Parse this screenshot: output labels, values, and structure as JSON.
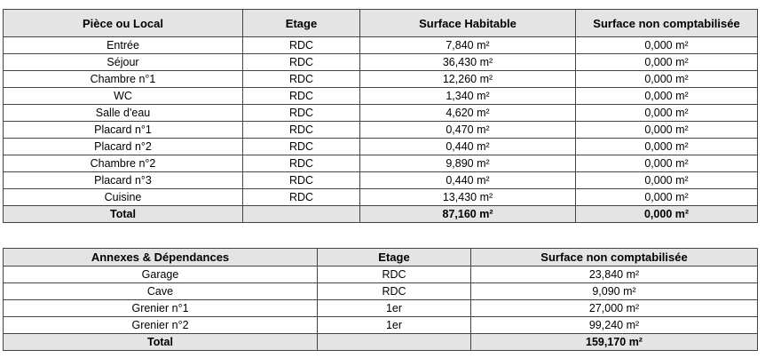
{
  "rooms_table": {
    "header": [
      "Pièce ou Local",
      "Etage",
      "Surface Habitable",
      "Surface non comptabilisée"
    ],
    "rows": [
      [
        "Entrée",
        "RDC",
        "7,840 m²",
        "0,000 m²"
      ],
      [
        "Séjour",
        "RDC",
        "36,430 m²",
        "0,000 m²"
      ],
      [
        "Chambre n°1",
        "RDC",
        "12,260 m²",
        "0,000 m²"
      ],
      [
        "WC",
        "RDC",
        "1,340 m²",
        "0,000 m²"
      ],
      [
        "Salle d'eau",
        "RDC",
        "4,620 m²",
        "0,000 m²"
      ],
      [
        "Placard n°1",
        "RDC",
        "0,470 m²",
        "0,000 m²"
      ],
      [
        "Placard n°2",
        "RDC",
        "0,440 m²",
        "0,000 m²"
      ],
      [
        "Chambre n°2",
        "RDC",
        "9,890 m²",
        "0,000 m²"
      ],
      [
        "Placard n°3",
        "RDC",
        "0,440 m²",
        "0,000 m²"
      ],
      [
        "Cuisine",
        "RDC",
        "13,430 m²",
        "0,000 m²"
      ]
    ],
    "total": [
      "Total",
      "",
      "87,160 m²",
      "0,000 m²"
    ]
  },
  "annexes_table": {
    "header": [
      "Annexes & Dépendances",
      "Etage",
      "Surface non comptabilisée"
    ],
    "rows": [
      [
        "Garage",
        "RDC",
        "23,840 m²"
      ],
      [
        "Cave",
        "RDC",
        "9,090 m²"
      ],
      [
        "Grenier n°1",
        "1er",
        "27,000 m²"
      ],
      [
        "Grenier n°2",
        "1er",
        "99,240 m²"
      ]
    ],
    "total": [
      "Total",
      "",
      "159,170 m²"
    ]
  }
}
